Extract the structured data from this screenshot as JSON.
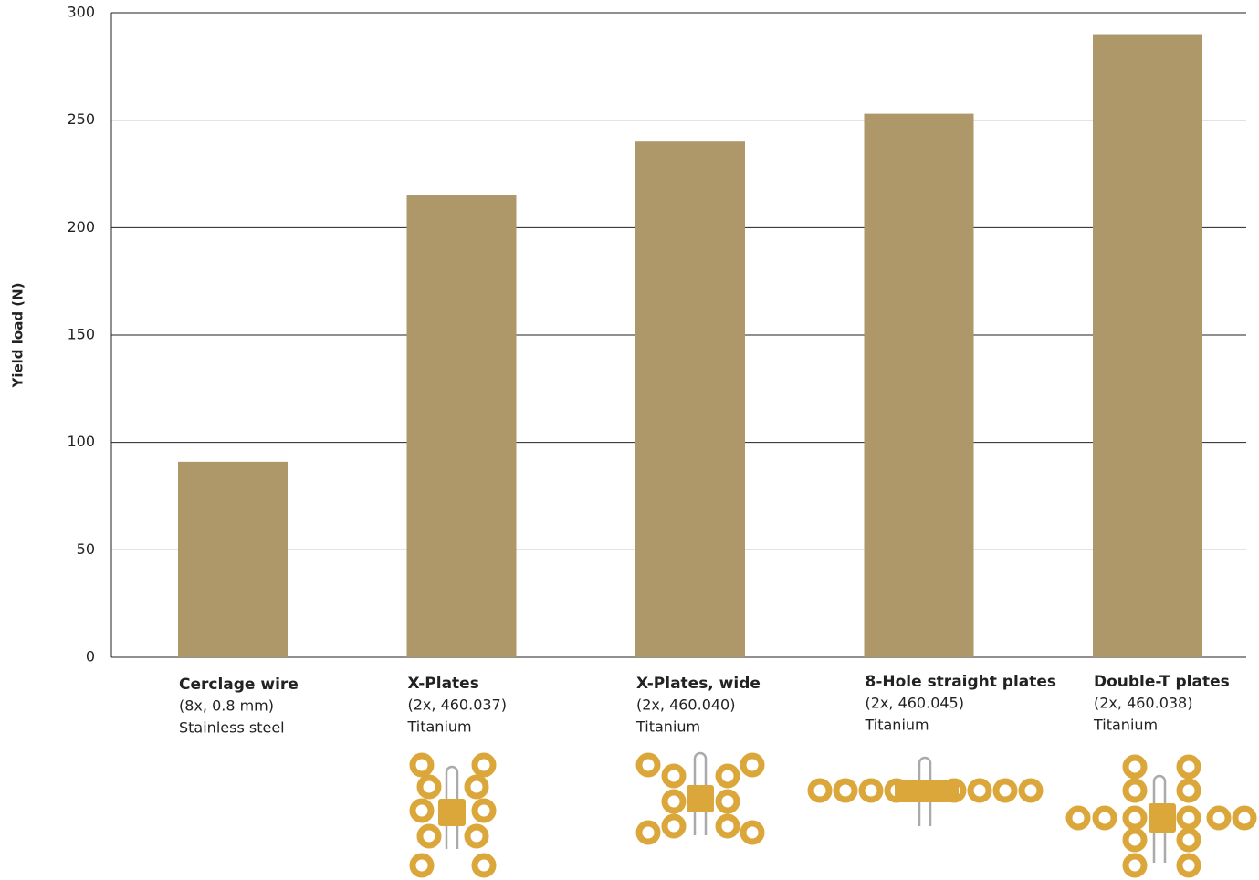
{
  "chart_data": {
    "type": "bar",
    "y_label": "Yield load (N)",
    "categories": [
      "Cerclage wire",
      "X-Plates",
      "X-Plates, wide",
      "8-Hole straight plates",
      "Double-T plates"
    ],
    "category_notes": [
      [
        "(8x, 0.8 mm)",
        "Stainless steel"
      ],
      [
        "(2x, 460.037)",
        "Titanium"
      ],
      [
        "(2x, 460.040)",
        "Titanium"
      ],
      [
        "(2x, 460.045)",
        "Titanium"
      ],
      [
        "(2x, 460.038)",
        "Titanium"
      ]
    ],
    "values": [
      91,
      215,
      240,
      253,
      290
    ],
    "color": "#ae986a",
    "ylim": [
      0,
      300
    ],
    "yticks": [
      0,
      50,
      100,
      150,
      200,
      250,
      300
    ],
    "grid": true
  }
}
